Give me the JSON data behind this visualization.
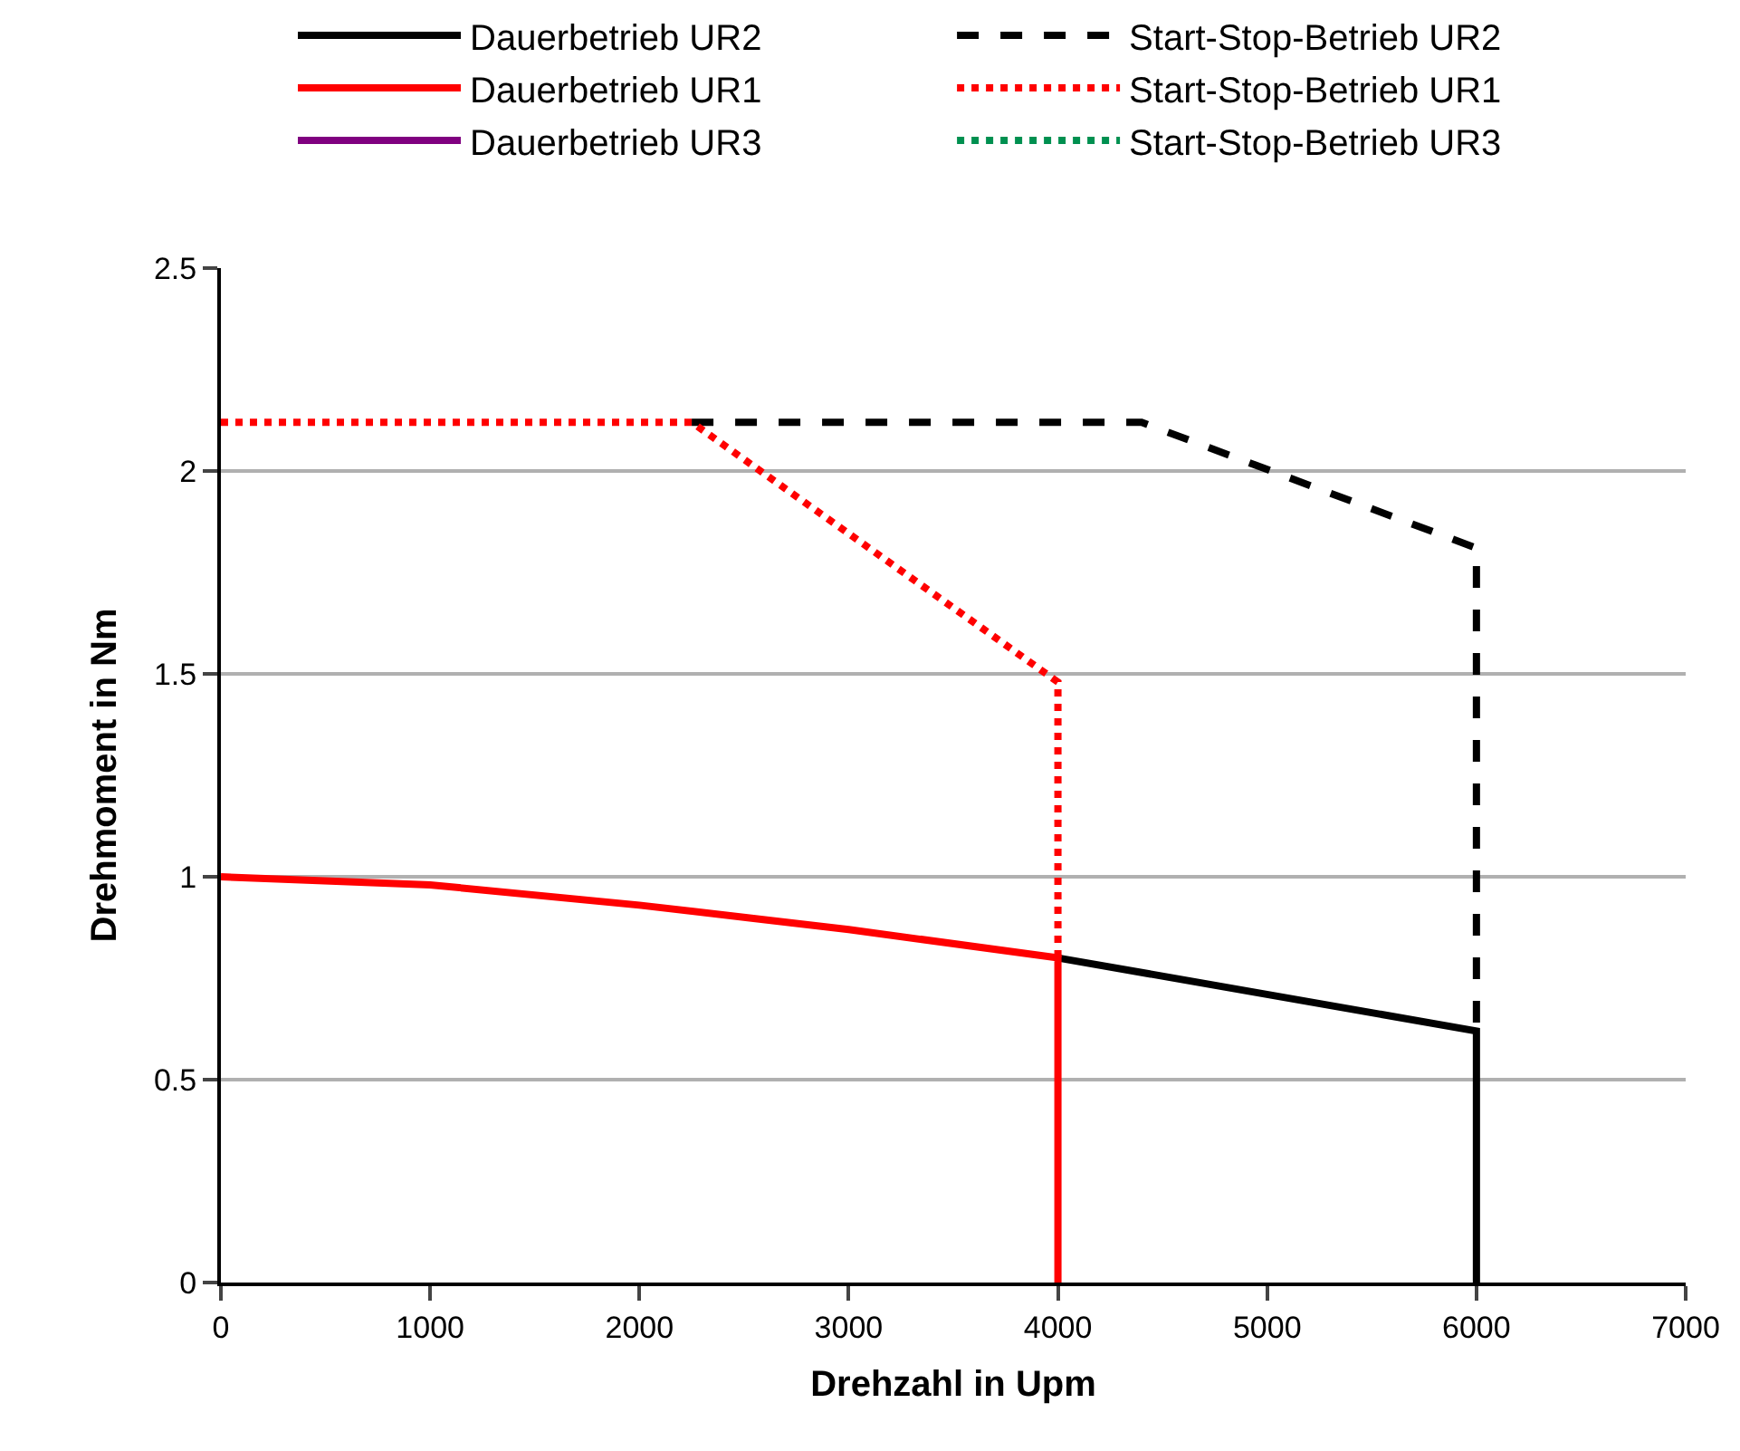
{
  "chart_data": {
    "type": "line",
    "xlabel": "Drehzahl in Upm",
    "ylabel": "Drehmoment in Nm",
    "xlim": [
      0,
      7000
    ],
    "xticks": [
      0,
      1000,
      2000,
      3000,
      4000,
      5000,
      6000,
      7000
    ],
    "ylim": [
      0,
      2.5
    ],
    "yticks": [
      0,
      0.5,
      1,
      1.5,
      2,
      2.5
    ],
    "grid": "y",
    "legend": "top",
    "marker": "none",
    "series": [
      {
        "name": "Dauerbetrieb UR2",
        "color": "#000000",
        "line_style": "solid",
        "x": [
          4000,
          6000,
          6000
        ],
        "values": [
          0.8,
          0.62,
          0
        ]
      },
      {
        "name": "Start-Stop-Betrieb UR2",
        "color": "#000000",
        "line_style": "dashed",
        "x": [
          2250,
          4400,
          6000,
          6000
        ],
        "values": [
          2.12,
          2.12,
          1.81,
          0.62
        ]
      },
      {
        "name": "Dauerbetrieb UR1",
        "color": "#ff0000",
        "line_style": "solid",
        "x": [
          0,
          1000,
          2000,
          3000,
          4000,
          4000
        ],
        "values": [
          1.0,
          0.98,
          0.93,
          0.87,
          0.8,
          0
        ]
      },
      {
        "name": "Start-Stop-Betrieb UR1",
        "color": "#ff0000",
        "line_style": "dotted",
        "x": [
          0,
          2250,
          4000,
          4000
        ],
        "values": [
          2.12,
          2.12,
          1.48,
          0.8
        ]
      },
      {
        "name": "Dauerbetrieb UR3",
        "color": "#800080",
        "line_style": "solid"
      },
      {
        "name": "Start-Stop-Betrieb UR3",
        "color": "#009050",
        "line_style": "dotted"
      }
    ]
  }
}
